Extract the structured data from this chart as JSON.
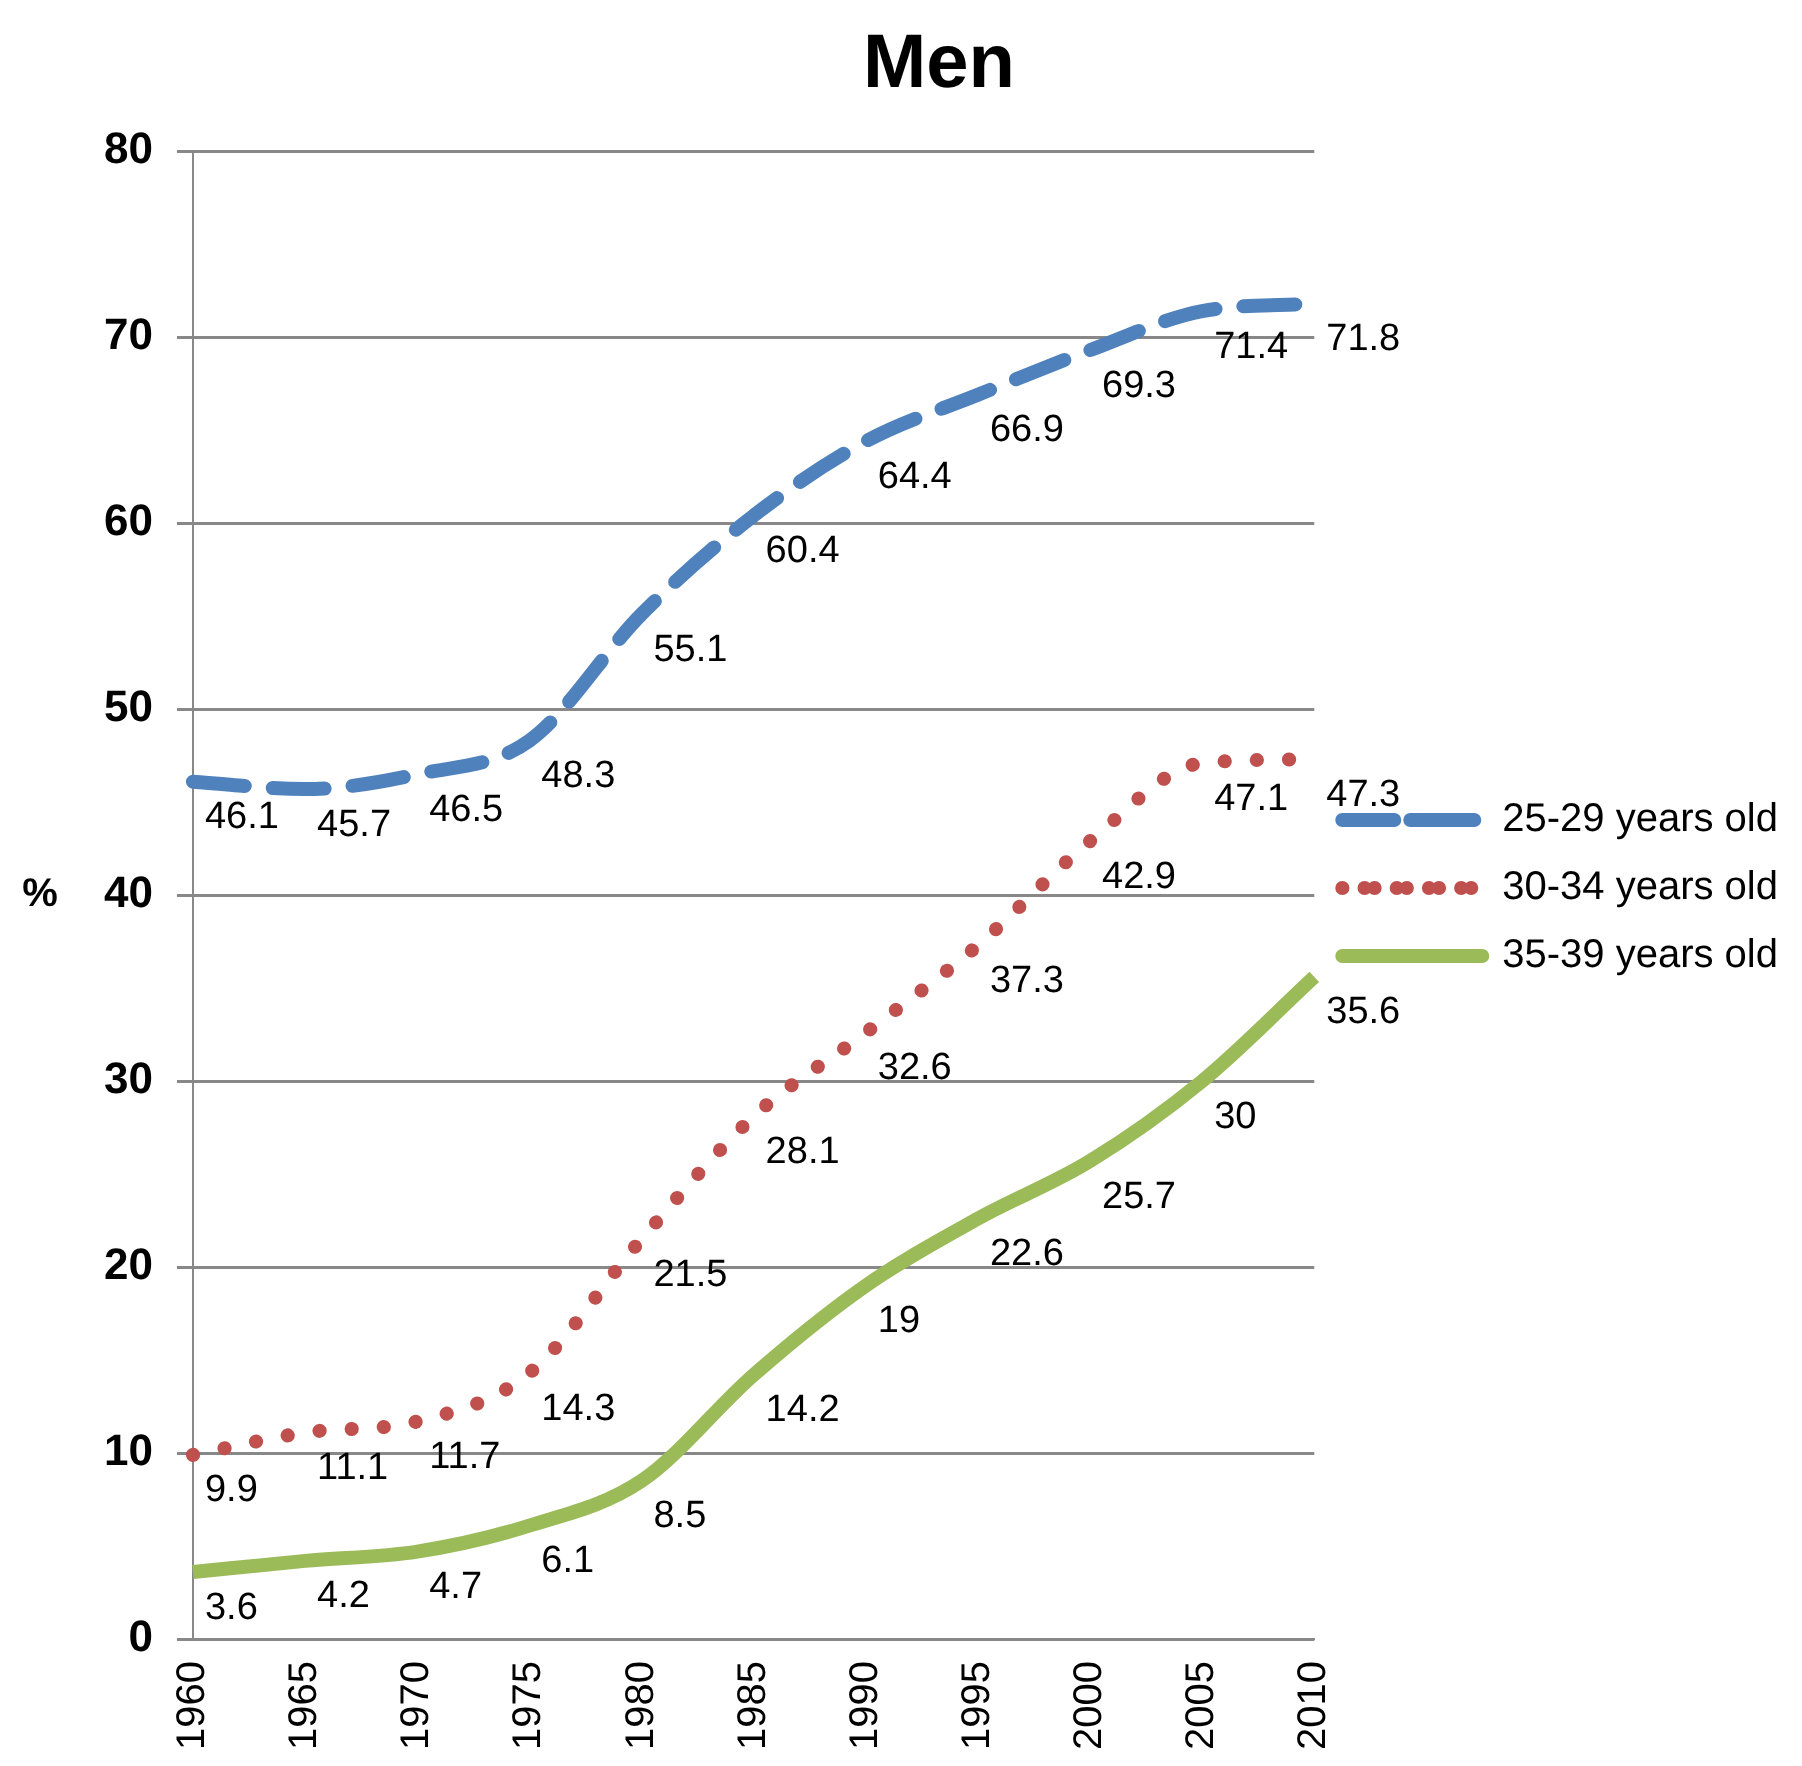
{
  "chart_data": {
    "type": "line",
    "title": "Men",
    "ylabel": "%",
    "categories": [
      "1960",
      "1965",
      "1970",
      "1975",
      "1980",
      "1985",
      "1990",
      "1995",
      "2000",
      "2005",
      "2010"
    ],
    "series": [
      {
        "name": "25-29 years old",
        "color": "#4f81bd",
        "line_style": "dashed",
        "values": [
          46.1,
          45.7,
          46.5,
          48.3,
          55.1,
          60.4,
          64.4,
          66.9,
          69.3,
          71.4,
          71.8
        ]
      },
      {
        "name": "30-34 years old",
        "color": "#c0504d",
        "line_style": "dotted",
        "values": [
          9.9,
          11.1,
          11.7,
          14.3,
          21.5,
          28.1,
          32.6,
          37.3,
          42.9,
          47.1,
          47.3
        ]
      },
      {
        "name": "35-39 years old",
        "color": "#9bbb59",
        "line_style": "solid",
        "values": [
          3.6,
          4.2,
          4.7,
          6.1,
          8.5,
          14.2,
          19,
          22.6,
          25.7,
          30,
          35.6
        ]
      }
    ],
    "ylim": [
      0,
      80
    ],
    "yticks": [
      0,
      10,
      20,
      30,
      40,
      50,
      60,
      70,
      80
    ],
    "grid": "y",
    "legend": "right",
    "marker": "none",
    "data_labels": true
  }
}
